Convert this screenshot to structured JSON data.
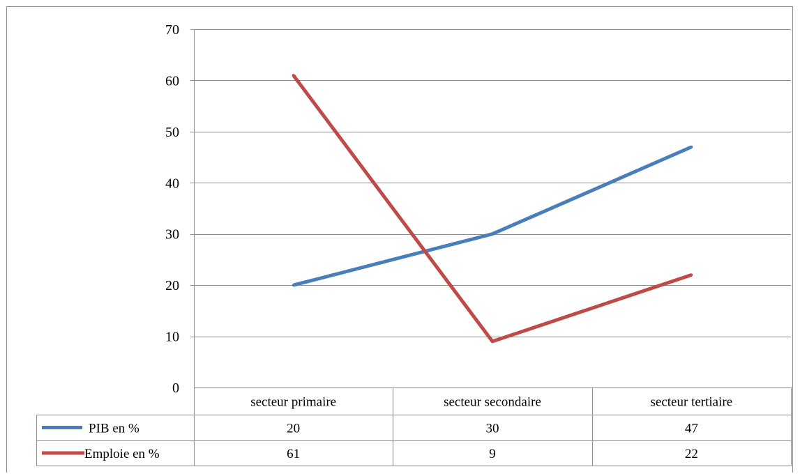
{
  "chart_data": {
    "type": "line",
    "categories": [
      "secteur primaire",
      "secteur secondaire",
      "secteur tertiaire"
    ],
    "series": [
      {
        "name": "PIB en %",
        "values": [
          20,
          30,
          47
        ],
        "color": "#4a7ebb"
      },
      {
        "name": "Emploie en %",
        "values": [
          61,
          9,
          22
        ],
        "color": "#be4b48"
      }
    ],
    "y_ticks": [
      "0",
      "10",
      "20",
      "30",
      "40",
      "50",
      "60",
      "70"
    ],
    "ylim": [
      0,
      70
    ],
    "grid": true,
    "legend": "data-table-below"
  }
}
